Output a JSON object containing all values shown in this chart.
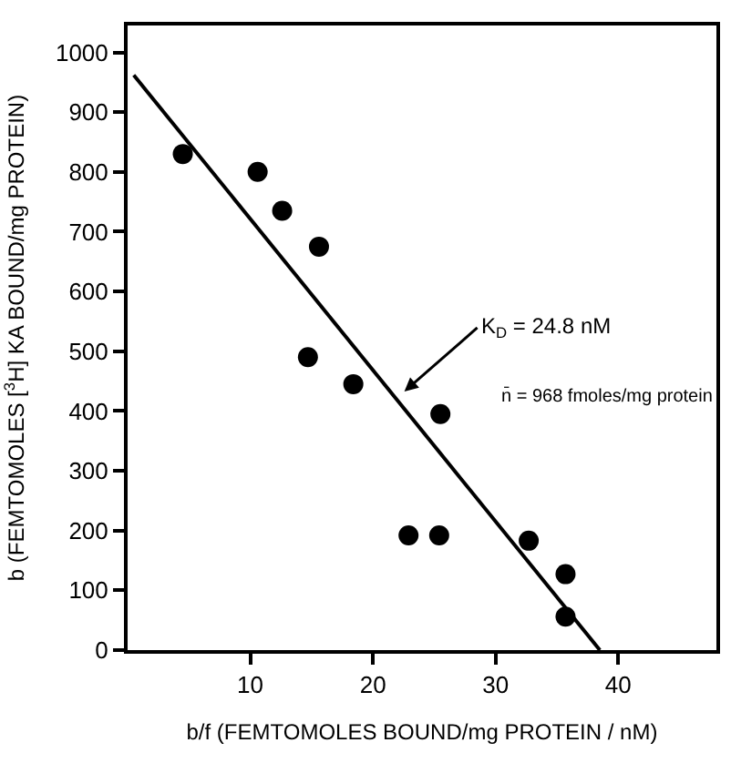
{
  "chart_data": {
    "type": "scatter",
    "xlabel": "b/f (FEMTOMOLES BOUND/mg PROTEIN / nM)",
    "ylabel": "b (FEMTOMOLES [$^{3}$H] KA BOUND/mg PROTEIN)",
    "series": [
      {
        "color": "#000000",
        "marker": "circle",
        "x": [
          4.5,
          10.6,
          12.6,
          15.6,
          14.7,
          18.4,
          25.5,
          22.9,
          25.4,
          32.7,
          35.7,
          35.7
        ],
        "values": [
          830,
          800,
          735,
          675,
          490,
          445,
          395,
          192,
          192,
          183,
          127,
          56
        ]
      },
      {
        "type": "line",
        "color": "#000000",
        "line_style": "solid",
        "x": [
          0.5,
          38.5
        ],
        "values": [
          962,
          0
        ]
      }
    ],
    "annotations": [
      "K$_{D}$ = 24.8 nM",
      "n̄ = 968 fmoles/mg protein"
    ],
    "xlim": [
      0,
      48
    ],
    "xticks": [
      10,
      20,
      30,
      40
    ],
    "ylim": [
      0,
      1045
    ],
    "yticks": [
      0,
      100,
      200,
      300,
      400,
      500,
      600,
      700,
      800,
      900,
      1000
    ]
  }
}
